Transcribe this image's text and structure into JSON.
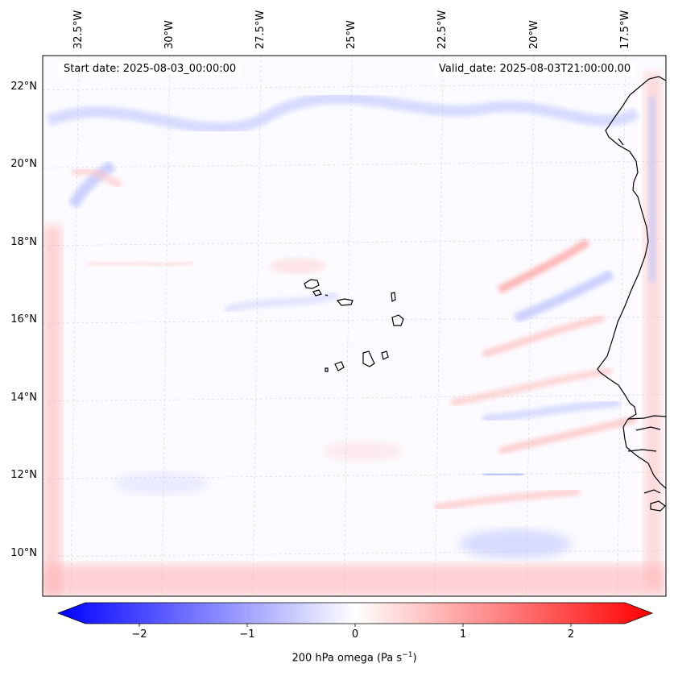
{
  "map": {
    "start_date_text": "Start date: 2025-08-03_00:00:00",
    "valid_date_text": "Valid_date: 2025-08-03T21:00:00.00",
    "lon_labels": [
      "32.5°W",
      "30°W",
      "27.5°W",
      "25°W",
      "22.5°W",
      "20°W",
      "17.5°W"
    ],
    "lat_labels": [
      "22°N",
      "20°N",
      "18°N",
      "16°N",
      "14°N",
      "12°N",
      "10°N"
    ],
    "lon_values": [
      -32.5,
      -30,
      -27.5,
      -25,
      -22.5,
      -20,
      -17.5
    ],
    "lat_values": [
      22,
      20,
      18,
      16,
      14,
      12,
      10
    ],
    "extent": {
      "lon_min": -33.4,
      "lon_max": -16.3,
      "lat_min": 8.9,
      "lat_max": 22.8
    }
  },
  "colorbar": {
    "ticks": [
      "−2",
      "−1",
      "0",
      "1",
      "2"
    ],
    "tick_values": [
      -2,
      -1,
      0,
      1,
      2
    ],
    "range": [
      -2.5,
      2.5
    ],
    "label": "200 hPa omega (Pa s",
    "label_sup": "−1",
    "label_close": ")",
    "colors": {
      "negative": "#0000ff",
      "zero": "#ffffff",
      "positive": "#ff0000"
    }
  }
}
